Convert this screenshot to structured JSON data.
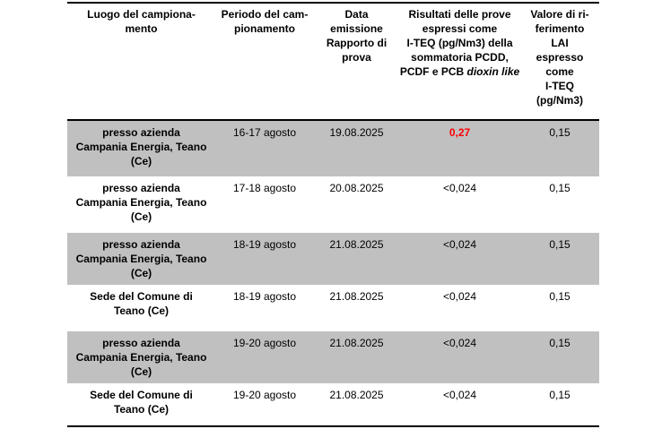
{
  "colors": {
    "row_shaded_background": "#c0c0c0",
    "result_exceedance_text": "#ff0000",
    "table_border": "#000000",
    "body_text": "#000000",
    "page_background": "#ffffff"
  },
  "table": {
    "header": {
      "luogo": "Luogo del campiona-\nmento",
      "periodo": "Periodo del cam-\npionamento",
      "data_emissione": "Data\nemissione\nRapporto di\nprova",
      "risultati_main": "Risultati delle prove\nespressi come\nI-TEQ (pg/Nm3) della\nsommatoria PCDD,\nPCDF e PCB ",
      "risultati_italic": "dioxin like",
      "valore_riferimento": "Valore di ri-\nferimento\nLAI\nespresso\ncome\nI-TEQ\n(pg/Nm3)"
    },
    "rows": [
      {
        "luogo": "presso azienda\nCampania Energia, Teano\n(Ce)",
        "periodo": "16-17 agosto",
        "data_emissione": "19.08.2025",
        "risultato": "0,27",
        "valore_riferimento": "0,15"
      },
      {
        "luogo": "presso azienda\nCampania Energia, Teano\n(Ce)",
        "periodo": "17-18 agosto",
        "data_emissione": "20.08.2025",
        "risultato": "<0,024",
        "valore_riferimento": "0,15"
      },
      {
        "luogo": "presso azienda\nCampania Energia, Teano\n(Ce)",
        "periodo": "18-19 agosto",
        "data_emissione": "21.08.2025",
        "risultato": "<0,024",
        "valore_riferimento": "0,15"
      },
      {
        "luogo": "Sede del Comune di\nTeano (Ce)",
        "periodo": "18-19 agosto",
        "data_emissione": "21.08.2025",
        "risultato": "<0,024",
        "valore_riferimento": "0,15"
      },
      {
        "luogo": "presso azienda\nCampania Energia, Teano\n(Ce)",
        "periodo": "19-20 agosto",
        "data_emissione": "21.08.2025",
        "risultato": "<0,024",
        "valore_riferimento": "0,15"
      },
      {
        "luogo": "Sede del Comune di\nTeano (Ce)",
        "periodo": "19-20 agosto",
        "data_emissione": "21.08.2025",
        "risultato": "<0,024",
        "valore_riferimento": "0,15"
      }
    ]
  }
}
